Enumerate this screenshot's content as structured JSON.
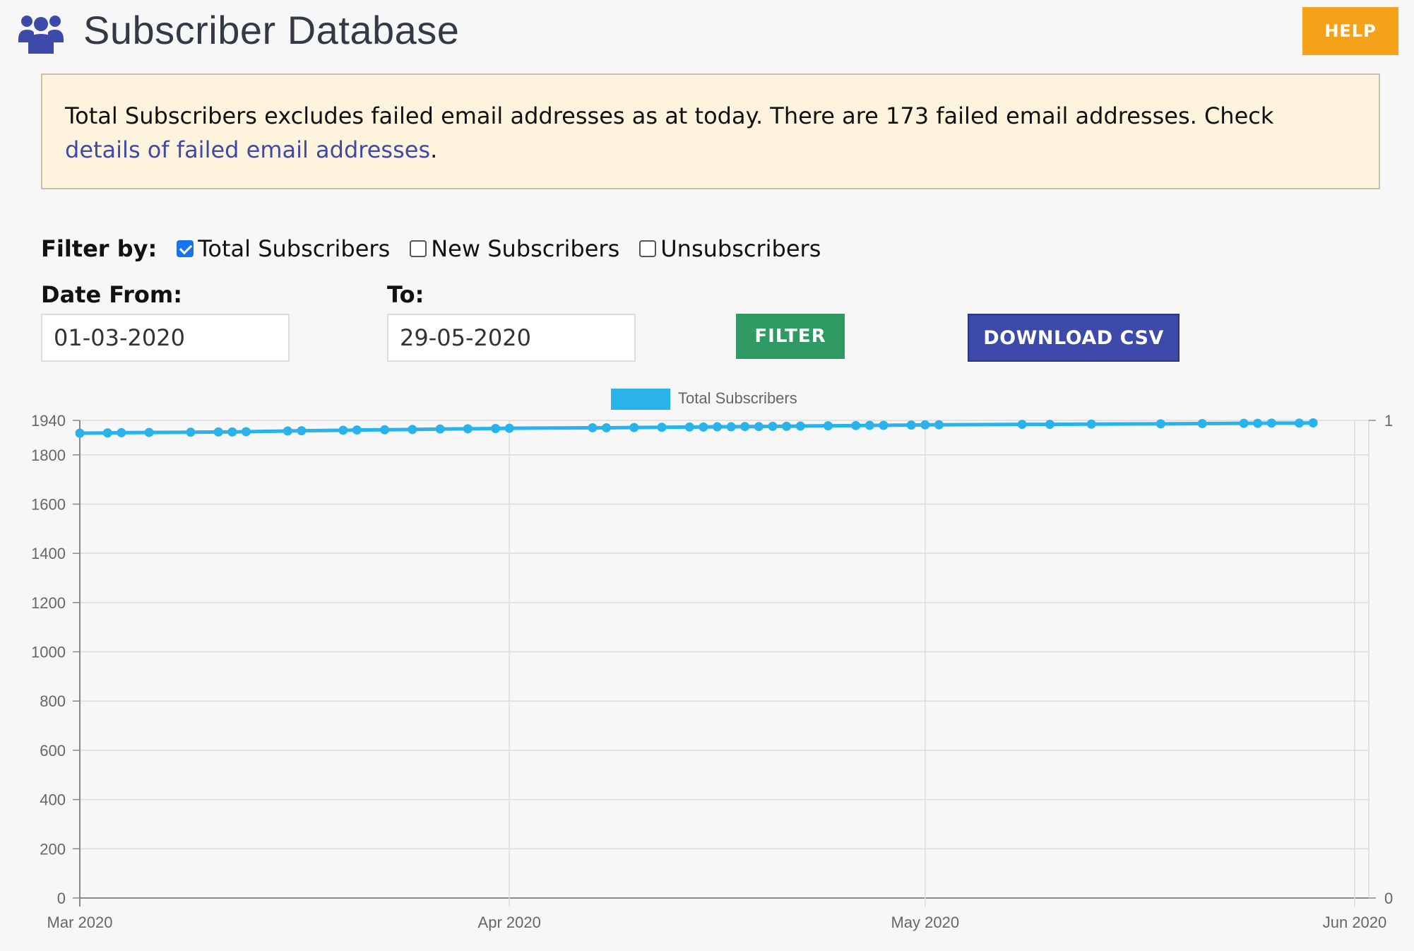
{
  "header": {
    "title": "Subscriber Database",
    "help_label": "HELP",
    "logo_icon": "users-group-icon",
    "accent_color": "#3e4aa9"
  },
  "notice": {
    "text_before": "Total Subscribers excludes failed email addresses as at today. There are 173 failed email addresses. Check ",
    "link_text": "details of failed email addresses",
    "text_after": "."
  },
  "filters": {
    "label": "Filter by:",
    "options": [
      {
        "label": "Total Subscribers",
        "checked": true
      },
      {
        "label": "New Subscribers",
        "checked": false
      },
      {
        "label": "Unsubscribers",
        "checked": false
      }
    ],
    "date_from_label": "Date From:",
    "date_from_value": "01-03-2020",
    "date_to_label": "To:",
    "date_to_value": "29-05-2020",
    "filter_label": "FILTER",
    "csv_label": "DOWNLOAD CSV",
    "filter_color": "#2f9a63",
    "help_color": "#f5a21b"
  },
  "chart_data": {
    "type": "line",
    "legend": "Total Subscribers",
    "legend_position": "top",
    "series_color": "#29b3ea",
    "grid": true,
    "y_left": {
      "min": 0,
      "max": 1940,
      "ticks": [
        0,
        200,
        400,
        600,
        800,
        1000,
        1200,
        1400,
        1600,
        1800,
        1940
      ]
    },
    "y_right": {
      "ticks": [
        0,
        1
      ]
    },
    "x_ticks": [
      "Mar 2020",
      "Apr 2020",
      "May 2020",
      "Jun 2020"
    ],
    "x_range": [
      "2020-03-01",
      "2020-06-01"
    ],
    "points": [
      {
        "x": "2020-03-01",
        "y": 1888
      },
      {
        "x": "2020-03-03",
        "y": 1889
      },
      {
        "x": "2020-03-04",
        "y": 1890
      },
      {
        "x": "2020-03-06",
        "y": 1891
      },
      {
        "x": "2020-03-09",
        "y": 1892
      },
      {
        "x": "2020-03-11",
        "y": 1893
      },
      {
        "x": "2020-03-12",
        "y": 1893
      },
      {
        "x": "2020-03-13",
        "y": 1894
      },
      {
        "x": "2020-03-16",
        "y": 1897
      },
      {
        "x": "2020-03-17",
        "y": 1898
      },
      {
        "x": "2020-03-20",
        "y": 1900
      },
      {
        "x": "2020-03-21",
        "y": 1901
      },
      {
        "x": "2020-03-23",
        "y": 1902
      },
      {
        "x": "2020-03-25",
        "y": 1903
      },
      {
        "x": "2020-03-27",
        "y": 1905
      },
      {
        "x": "2020-03-29",
        "y": 1906
      },
      {
        "x": "2020-03-31",
        "y": 1907
      },
      {
        "x": "2020-04-01",
        "y": 1908
      },
      {
        "x": "2020-04-07",
        "y": 1910
      },
      {
        "x": "2020-04-08",
        "y": 1910
      },
      {
        "x": "2020-04-10",
        "y": 1911
      },
      {
        "x": "2020-04-12",
        "y": 1912
      },
      {
        "x": "2020-04-14",
        "y": 1913
      },
      {
        "x": "2020-04-15",
        "y": 1913
      },
      {
        "x": "2020-04-16",
        "y": 1914
      },
      {
        "x": "2020-04-17",
        "y": 1914
      },
      {
        "x": "2020-04-18",
        "y": 1915
      },
      {
        "x": "2020-04-19",
        "y": 1915
      },
      {
        "x": "2020-04-20",
        "y": 1916
      },
      {
        "x": "2020-04-21",
        "y": 1916
      },
      {
        "x": "2020-04-22",
        "y": 1917
      },
      {
        "x": "2020-04-24",
        "y": 1918
      },
      {
        "x": "2020-04-26",
        "y": 1919
      },
      {
        "x": "2020-04-27",
        "y": 1920
      },
      {
        "x": "2020-04-28",
        "y": 1920
      },
      {
        "x": "2020-04-30",
        "y": 1921
      },
      {
        "x": "2020-05-01",
        "y": 1922
      },
      {
        "x": "2020-05-02",
        "y": 1922
      },
      {
        "x": "2020-05-08",
        "y": 1924
      },
      {
        "x": "2020-05-10",
        "y": 1924
      },
      {
        "x": "2020-05-13",
        "y": 1925
      },
      {
        "x": "2020-05-18",
        "y": 1926
      },
      {
        "x": "2020-05-21",
        "y": 1927
      },
      {
        "x": "2020-05-24",
        "y": 1928
      },
      {
        "x": "2020-05-25",
        "y": 1928
      },
      {
        "x": "2020-05-26",
        "y": 1929
      },
      {
        "x": "2020-05-28",
        "y": 1929
      },
      {
        "x": "2020-05-29",
        "y": 1930
      }
    ]
  }
}
